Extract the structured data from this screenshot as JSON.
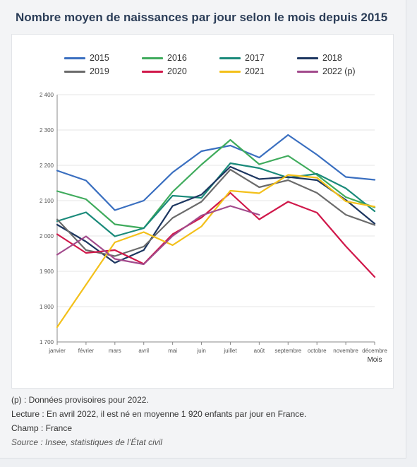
{
  "title": "Nombre moyen de naissances par jour selon le mois depuis 2015",
  "notes": {
    "provisional": "(p) : Données provisoires pour 2022.",
    "reading": "Lecture : En avril 2022, il est né en moyenne 1 920 enfants par jour en France.",
    "scope": "Champ : France",
    "source": "Source : Insee, statistiques de l’État civil"
  },
  "chart_data": {
    "type": "line",
    "title": "Nombre moyen de naissances par jour selon le mois depuis 2015",
    "xlabel": "Mois",
    "ylabel": "",
    "categories": [
      "janvier",
      "février",
      "mars",
      "avril",
      "mai",
      "juin",
      "juillet",
      "août",
      "septembre",
      "octobre",
      "novembre",
      "décembre"
    ],
    "ylim": [
      1700,
      2400
    ],
    "yticks": [
      1700,
      1800,
      1900,
      2000,
      2100,
      2200,
      2300,
      2400
    ],
    "ytick_labels": [
      "1 700",
      "1 800",
      "1 900",
      "2 000",
      "2 100",
      "2 200",
      "2 300",
      "2 400"
    ],
    "grid": "horizontal",
    "legend_position": "top",
    "series": [
      {
        "name": "2015",
        "color": "#3a6fc0",
        "values": [
          2185,
          2157,
          2073,
          2100,
          2180,
          2240,
          2256,
          2222,
          2286,
          2230,
          2167,
          2159
        ]
      },
      {
        "name": "2016",
        "color": "#3fab5c",
        "values": [
          2127,
          2104,
          2033,
          2022,
          2125,
          2202,
          2272,
          2203,
          2227,
          2173,
          2110,
          2081
        ]
      },
      {
        "name": "2017",
        "color": "#1a8a7a",
        "values": [
          2042,
          2067,
          1999,
          2022,
          2114,
          2108,
          2206,
          2192,
          2165,
          2176,
          2135,
          2070
        ]
      },
      {
        "name": "2018",
        "color": "#1c3660",
        "values": [
          2032,
          1984,
          1924,
          1960,
          2085,
          2117,
          2196,
          2161,
          2167,
          2158,
          2102,
          2035
        ]
      },
      {
        "name": "2019",
        "color": "#6b6b6b",
        "values": [
          2047,
          1960,
          1943,
          1970,
          2051,
          2097,
          2188,
          2138,
          2158,
          2122,
          2060,
          2031
        ]
      },
      {
        "name": "2020",
        "color": "#d0184a",
        "values": [
          2005,
          1952,
          1960,
          1921,
          2005,
          2052,
          2122,
          2047,
          2097,
          2066,
          1971,
          1884
        ]
      },
      {
        "name": "2021",
        "color": "#f3c01a",
        "values": [
          1742,
          1862,
          1982,
          2011,
          1974,
          2027,
          2128,
          2121,
          2173,
          2165,
          2098,
          2083
        ]
      },
      {
        "name": "2022 (p)",
        "color": "#a24a8c",
        "values": [
          1947,
          1999,
          1935,
          1920,
          2000,
          2058,
          2085,
          2060,
          null,
          null,
          null,
          null
        ]
      }
    ]
  }
}
